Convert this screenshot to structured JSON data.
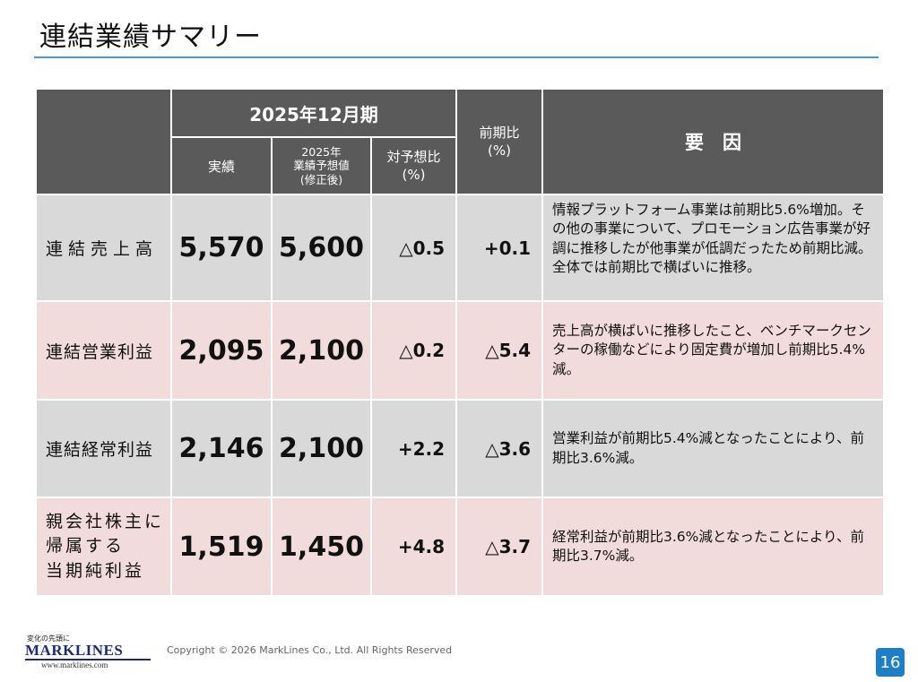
{
  "title": "連結業績サマリー",
  "header": {
    "period": "2025年12月期",
    "actual": "実績",
    "forecast": "2025年\n業績予想値\n(修正後)",
    "vs_forecast": "対予想比\n(%)",
    "yoy": "前期比\n(%)",
    "reason": "要　因"
  },
  "rows": [
    {
      "label": "連結売上高",
      "actual": "5,570",
      "forecast": "5,600",
      "vs_forecast": "△0.5",
      "yoy": "+0.1",
      "reason": "情報プラットフォーム事業は前期比5.6%増加。その他の事業について、プロモーション広告事業が好調に推移したが他事業が低調だったため前期比減。全体では前期比で横ばいに推移。"
    },
    {
      "label": "連結営業利益",
      "actual": "2,095",
      "forecast": "2,100",
      "vs_forecast": "△0.2",
      "yoy": "△5.4",
      "reason": "売上高が横ばいに推移したこと、ベンチマークセンターの稼働などにより固定費が増加し前期比5.4%減。"
    },
    {
      "label": "連結経常利益",
      "actual": "2,146",
      "forecast": "2,100",
      "vs_forecast": "+2.2",
      "yoy": "△3.6",
      "reason": "営業利益が前期比5.4%減となったことにより、前期比3.6%減。"
    },
    {
      "label": "親会社株主に\n帰属する\n当期純利益",
      "actual": "1,519",
      "forecast": "1,450",
      "vs_forecast": "+4.8",
      "yoy": "△3.7",
      "reason": "経常利益が前期比3.6%減となったことにより、前期比3.7%減。"
    }
  ],
  "footer": {
    "tagline": "変化の先頭に",
    "logo": "MARKLINES",
    "url": "www.marklines.com",
    "copyright": "Copyright © 2026 MarkLines Co., Ltd. All Rights Reserved",
    "page": "16"
  },
  "colors": {
    "header_bg": "#5a5a5a",
    "row_gray": "#d9d9d9",
    "row_pink": "#f2dcdb",
    "title_rule": "#4a9ad3",
    "page_badge": "#1f7fc4"
  }
}
